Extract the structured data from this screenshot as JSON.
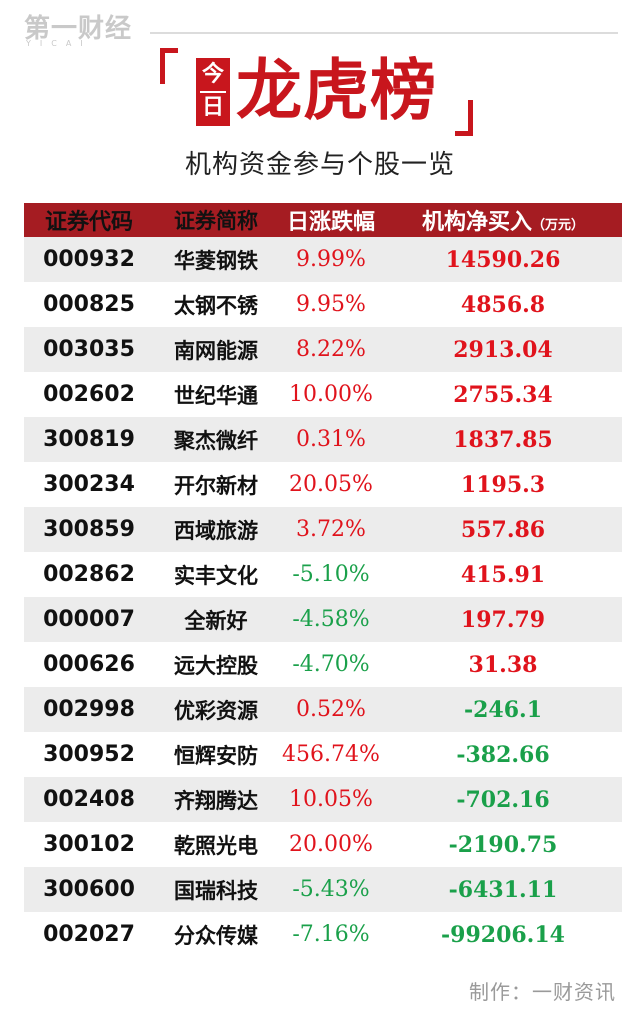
{
  "logo": {
    "name": "第一财经",
    "sub": "YICAI"
  },
  "title": {
    "today_chars": [
      "今",
      "日"
    ],
    "main": "龙虎榜",
    "subtitle": "机构资金参与个股一览"
  },
  "table": {
    "headers": {
      "code": "证券代码",
      "name": "证券简称",
      "change": "日涨跌幅",
      "net": "机构净买入",
      "net_unit": "（万元）"
    },
    "rows": [
      {
        "code": "000932",
        "name": "华菱钢铁",
        "change": "9.99%",
        "net": "14590.26"
      },
      {
        "code": "000825",
        "name": "太钢不锈",
        "change": "9.95%",
        "net": "4856.8"
      },
      {
        "code": "003035",
        "name": "南网能源",
        "change": "8.22%",
        "net": "2913.04"
      },
      {
        "code": "002602",
        "name": "世纪华通",
        "change": "10.00%",
        "net": "2755.34"
      },
      {
        "code": "300819",
        "name": "聚杰微纤",
        "change": "0.31%",
        "net": "1837.85"
      },
      {
        "code": "300234",
        "name": "开尔新材",
        "change": "20.05%",
        "net": "1195.3"
      },
      {
        "code": "300859",
        "name": "西域旅游",
        "change": "3.72%",
        "net": "557.86"
      },
      {
        "code": "002862",
        "name": "实丰文化",
        "change": "-5.10%",
        "net": "415.91"
      },
      {
        "code": "000007",
        "name": "全新好",
        "change": "-4.58%",
        "net": "197.79"
      },
      {
        "code": "000626",
        "name": "远大控股",
        "change": "-4.70%",
        "net": "31.38"
      },
      {
        "code": "002998",
        "name": "优彩资源",
        "change": "0.52%",
        "net": "-246.1"
      },
      {
        "code": "300952",
        "name": "恒辉安防",
        "change": "456.74%",
        "net": "-382.66"
      },
      {
        "code": "002408",
        "name": "齐翔腾达",
        "change": "10.05%",
        "net": "-702.16"
      },
      {
        "code": "300102",
        "name": "乾照光电",
        "change": "20.00%",
        "net": "-2190.75"
      },
      {
        "code": "300600",
        "name": "国瑞科技",
        "change": "-5.43%",
        "net": "-6431.11"
      },
      {
        "code": "002027",
        "name": "分众传媒",
        "change": "-7.16%",
        "net": "-99206.14"
      }
    ]
  },
  "footer": "制作：一财资讯",
  "colors": {
    "accent": "#c8161d",
    "header_bg": "#a51c22",
    "positive": "#e0131c",
    "negative": "#1aa04a",
    "stripe": "#ececec"
  }
}
